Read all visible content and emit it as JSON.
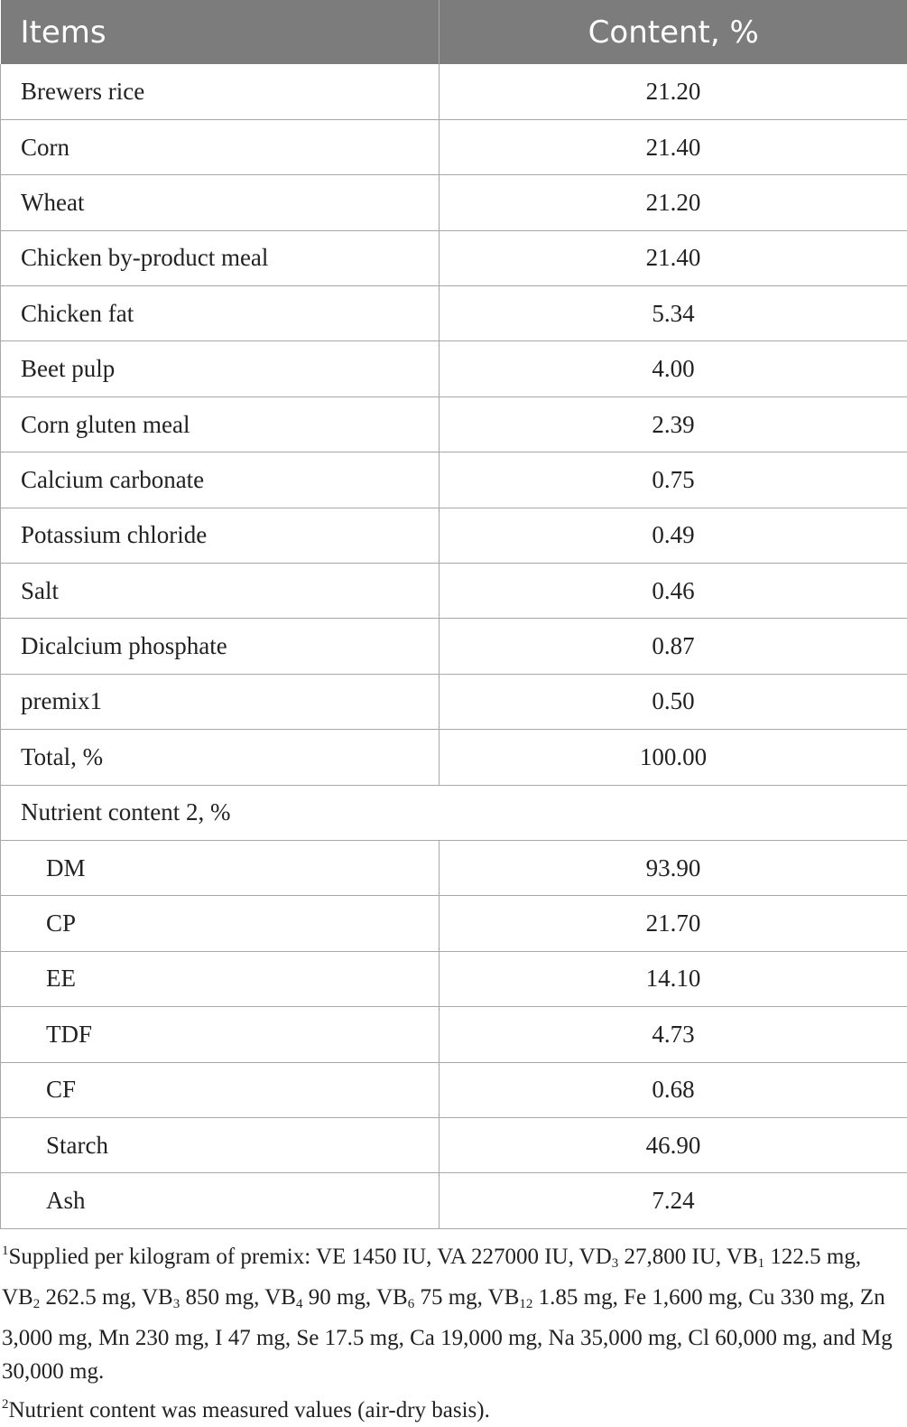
{
  "table": {
    "headers": [
      "Items",
      "Content, %"
    ],
    "rows": [
      {
        "item": "Brewers rice",
        "value": "21.20"
      },
      {
        "item": "Corn",
        "value": "21.40"
      },
      {
        "item": "Wheat",
        "value": "21.20"
      },
      {
        "item": "Chicken by-product meal",
        "value": "21.40"
      },
      {
        "item": "Chicken fat",
        "value": "5.34"
      },
      {
        "item": "Beet pulp",
        "value": "4.00"
      },
      {
        "item": "Corn gluten meal",
        "value": "2.39"
      },
      {
        "item": "Calcium carbonate",
        "value": "0.75"
      },
      {
        "item": "Potassium chloride",
        "value": "0.49"
      },
      {
        "item": "Salt",
        "value": "0.46"
      },
      {
        "item": "Dicalcium phosphate",
        "value": "0.87"
      },
      {
        "item": "premix1",
        "value": "0.50"
      },
      {
        "item": "Total, %",
        "value": "100.00"
      }
    ],
    "section_label": "Nutrient content 2, %",
    "nutrient_rows": [
      {
        "item": "DM",
        "value": "93.90"
      },
      {
        "item": "CP",
        "value": "21.70"
      },
      {
        "item": "EE",
        "value": "14.10"
      },
      {
        "item": "TDF",
        "value": "4.73"
      },
      {
        "item": "CF",
        "value": "0.68"
      },
      {
        "item": "Starch",
        "value": "46.90"
      },
      {
        "item": "Ash",
        "value": "7.24"
      }
    ]
  },
  "footnotes": {
    "note1_marker": "1",
    "note1_text": "Supplied per kilogram of premix: VE 1450 IU, VA 227000 IU, VD3 27,800 IU, VB1 122.5 mg, VB2 262.5 mg, VB3 850 mg, VB4 90 mg, VB6 75 mg, VB12 1.85 mg, Fe 1,600 mg, Cu 330 mg, Zn 3,000 mg, Mn 230 mg, I 47 mg, Se 17.5 mg, Ca 19,000 mg, Na 35,000 mg, Cl 60,000 mg, and Mg 30,000 mg.",
    "note2_marker": "2",
    "note2_text": "Nutrient content was measured values (air-dry basis)."
  }
}
